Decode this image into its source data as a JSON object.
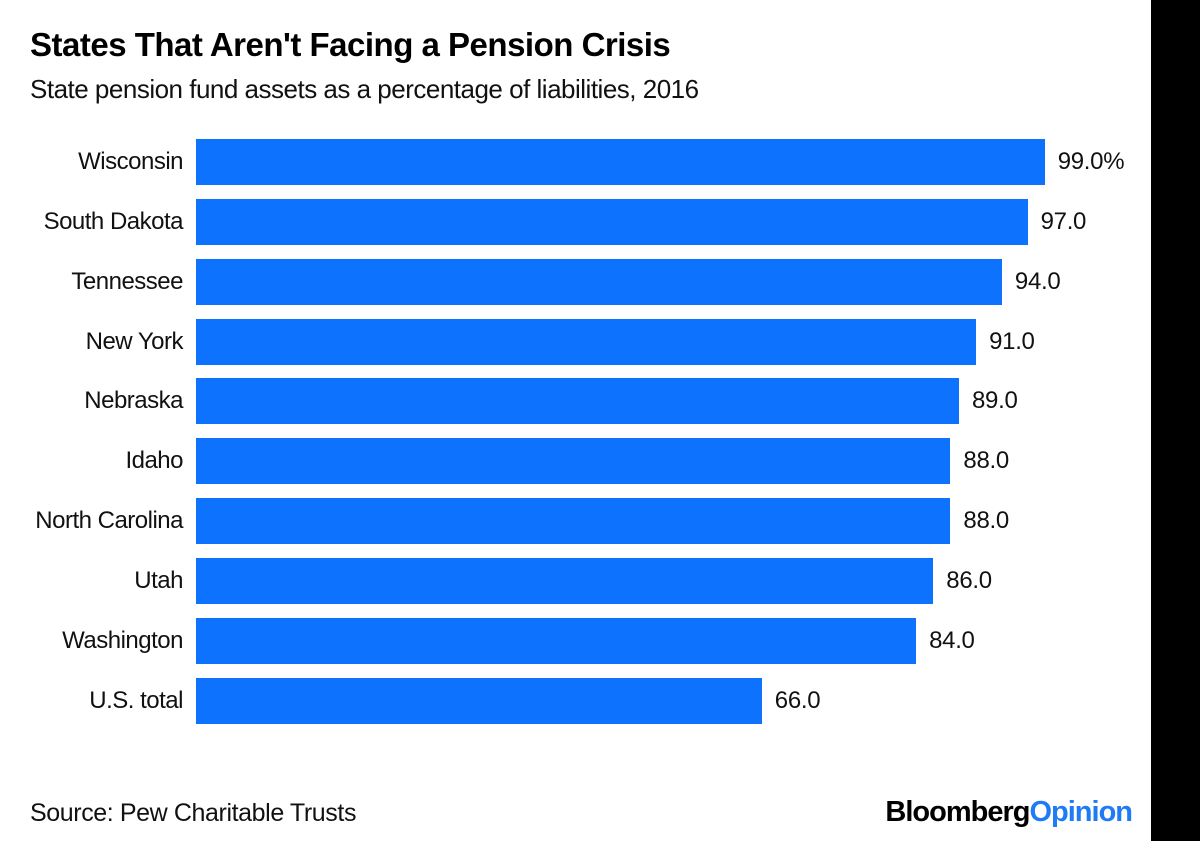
{
  "header": {
    "title": "States That Aren't Facing a Pension Crisis",
    "subtitle": "State pension fund assets as a percentage of liabilities, 2016"
  },
  "footer": {
    "source": "Source: Pew Charitable Trusts",
    "brand_black": "Bloomberg",
    "brand_blue": "Opinion"
  },
  "colors": {
    "bar": "#0d73ff",
    "brand_blue": "#1f7bf4",
    "text": "#111111",
    "title": "#000000",
    "background": "#ffffff",
    "right_strip": "#000000"
  },
  "chart_data": {
    "type": "bar",
    "orientation": "horizontal",
    "title": "States That Aren't Facing a Pension Crisis",
    "subtitle": "State pension fund assets as a percentage of liabilities, 2016",
    "categories": [
      "Wisconsin",
      "South Dakota",
      "Tennessee",
      "New York",
      "Nebraska",
      "Idaho",
      "North Carolina",
      "Utah",
      "Washington",
      "U.S. total"
    ],
    "values": [
      99.0,
      97.0,
      94.0,
      91.0,
      89.0,
      88.0,
      88.0,
      86.0,
      84.0,
      66.0
    ],
    "value_labels": [
      "99.0%",
      "97.0",
      "94.0",
      "91.0",
      "89.0",
      "88.0",
      "88.0",
      "86.0",
      "84.0",
      "66.0"
    ],
    "unit": "%",
    "xlim": [
      0,
      111
    ],
    "grid": false,
    "legend": false,
    "value_label_position": "right-of-bar",
    "source": "Source: Pew Charitable Trusts",
    "brand": "BloombergOpinion"
  }
}
